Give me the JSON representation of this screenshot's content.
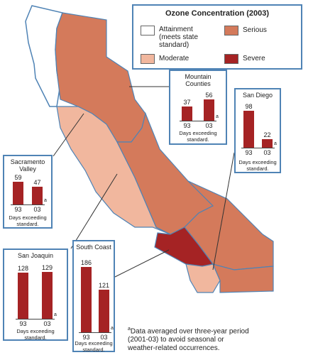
{
  "legend": {
    "title": "Ozone Concentration (2003)",
    "items": [
      {
        "label": "Attainment (meets state standard)",
        "line1": "Attainment",
        "line2": "(meets state",
        "line3": "standard)",
        "color": "#ffffff"
      },
      {
        "label": "Serious",
        "color": "#d47a5b"
      },
      {
        "label": "Moderate",
        "color": "#f1b79e"
      },
      {
        "label": "Severe",
        "color": "#a52324"
      }
    ]
  },
  "colors": {
    "border": "#4f83b5",
    "bar": "#a52324"
  },
  "chart_data": [
    {
      "type": "bar",
      "title": "Mountain Counties",
      "categories": [
        "93",
        "03"
      ],
      "values": [
        37,
        56
      ],
      "note": "a",
      "caption": "Days exceeding standard."
    },
    {
      "type": "bar",
      "title": "San Diego",
      "categories": [
        "93",
        "03"
      ],
      "values": [
        98,
        22
      ],
      "note": "a",
      "caption": "Days exceeding standard."
    },
    {
      "type": "bar",
      "title": "Sacramento Valley",
      "categories": [
        "93",
        "03"
      ],
      "values": [
        59,
        47
      ],
      "note": "a",
      "caption": "Days exceeding standard."
    },
    {
      "type": "bar",
      "title": "San Joaquin",
      "categories": [
        "93",
        "03"
      ],
      "values": [
        128,
        129
      ],
      "note": "a",
      "caption": "Days exceeding standard."
    },
    {
      "type": "bar",
      "title": "South Coast",
      "categories": [
        "93",
        "03"
      ],
      "values": [
        186,
        121
      ],
      "note": "a",
      "caption": "Days exceeding standard."
    }
  ],
  "panels": {
    "mountain": {
      "title_line1": "Mountain",
      "title_line2": "Counties",
      "caption_line1": "Days exceeding",
      "caption_line2": "standard."
    },
    "sandiego": {
      "title_line1": "San Diego",
      "caption_line1": "Days exceeding",
      "caption_line2": "standard."
    },
    "sacramento": {
      "title_line1": "Sacramento",
      "title_line2": "Valley",
      "caption_line1": "Days exceeding",
      "caption_line2": "standard."
    },
    "sanjoaquin": {
      "title_line1": "San Joaquin",
      "caption_line1": "Days exceeding",
      "caption_line2": "standard."
    },
    "southcoast": {
      "title_line1": "South Coast",
      "caption_line1": "Days exceeding",
      "caption_line2": "standard."
    }
  },
  "footnote": {
    "marker": "a",
    "line1": "Data averaged over three-year period",
    "line2": "(2001-03) to avoid seasonal or",
    "line3": "weather-related occurrences."
  }
}
